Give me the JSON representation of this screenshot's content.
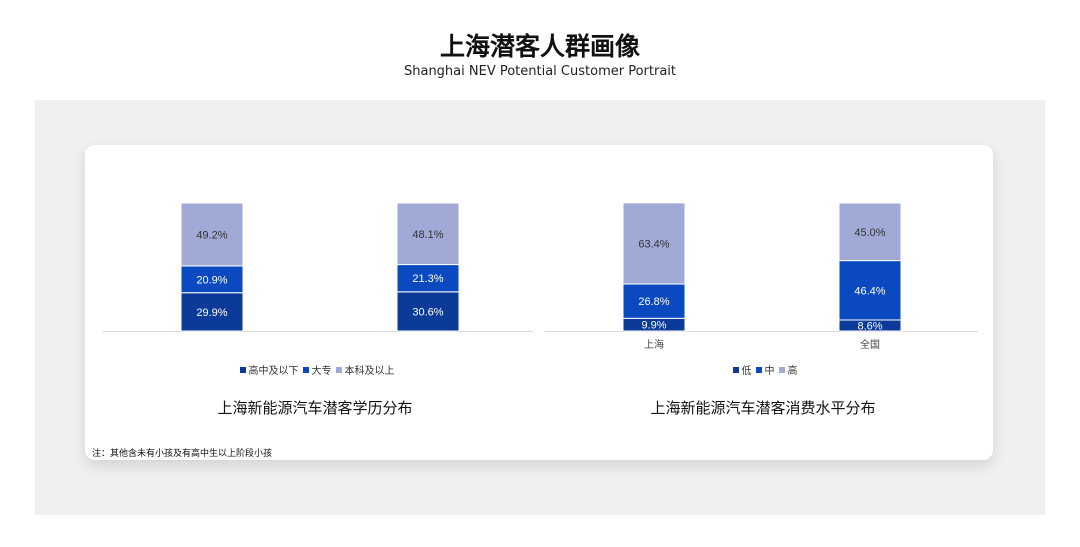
{
  "header": {
    "title": "上海潜客人群画像",
    "subtitle": "Shanghai NEV Potential Customer Portrait"
  },
  "note": "注：其他含未有小孩及有高中生以上阶段小孩",
  "colors": {
    "dark": "#0b3a98",
    "mid": "#0a49bf",
    "light": "#a1a9d7"
  },
  "chart_data": [
    {
      "type": "stacked-bar",
      "title": "上海新能源汽车潜客学历分布",
      "categories": [
        "",
        ""
      ],
      "series": [
        {
          "name": "高中及以下",
          "values": [
            29.9,
            30.6
          ]
        },
        {
          "name": "大专",
          "values": [
            20.9,
            21.3
          ]
        },
        {
          "name": "本科及以上",
          "values": [
            49.2,
            48.1
          ]
        }
      ],
      "unit": "%",
      "legend": "bottom",
      "ylim": [
        0,
        100
      ]
    },
    {
      "type": "stacked-bar",
      "title": "上海新能源汽车潜客消费水平分布",
      "categories": [
        "上海",
        "全国"
      ],
      "series": [
        {
          "name": "低",
          "values": [
            9.9,
            8.6
          ]
        },
        {
          "name": "中",
          "values": [
            26.8,
            46.4
          ]
        },
        {
          "name": "高",
          "values": [
            63.4,
            45.0
          ]
        }
      ],
      "unit": "%",
      "legend": "bottom",
      "ylim": [
        0,
        100
      ]
    }
  ]
}
